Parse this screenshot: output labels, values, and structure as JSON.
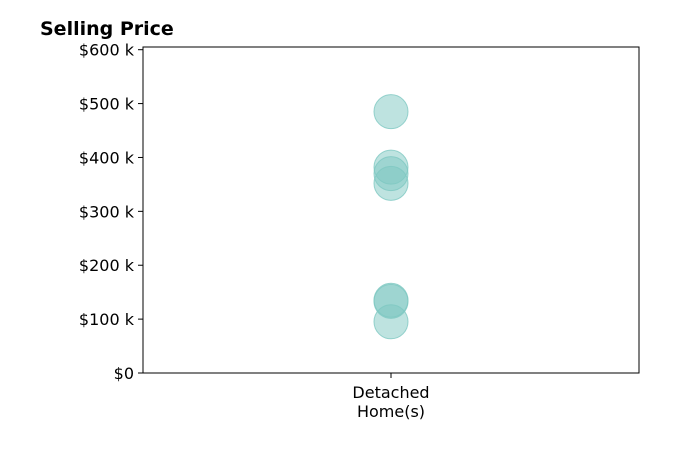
{
  "chart_data": {
    "type": "scatter",
    "title": "Selling Price",
    "xlabel": "",
    "ylabel": "",
    "categories": [
      "Detached\nHome(s)"
    ],
    "y_ticks": [
      {
        "value": 0,
        "label": "$0"
      },
      {
        "value": 100000,
        "label": "$100 k"
      },
      {
        "value": 200000,
        "label": "$200 k"
      },
      {
        "value": 300000,
        "label": "$300 k"
      },
      {
        "value": 400000,
        "label": "$400 k"
      },
      {
        "value": 500000,
        "label": "$500 k"
      },
      {
        "value": 600000,
        "label": "$600 k"
      }
    ],
    "ylim": [
      0,
      605000
    ],
    "grid": false,
    "series": [
      {
        "color": "#7ec8c2",
        "points": [
          {
            "category": "Detached\nHome(s)",
            "y": 485000
          },
          {
            "category": "Detached\nHome(s)",
            "y": 382000
          },
          {
            "category": "Detached\nHome(s)",
            "y": 370000
          },
          {
            "category": "Detached\nHome(s)",
            "y": 352000
          },
          {
            "category": "Detached\nHome(s)",
            "y": 135000
          },
          {
            "category": "Detached\nHome(s)",
            "y": 133000
          },
          {
            "category": "Detached\nHome(s)",
            "y": 95000
          }
        ]
      }
    ]
  }
}
